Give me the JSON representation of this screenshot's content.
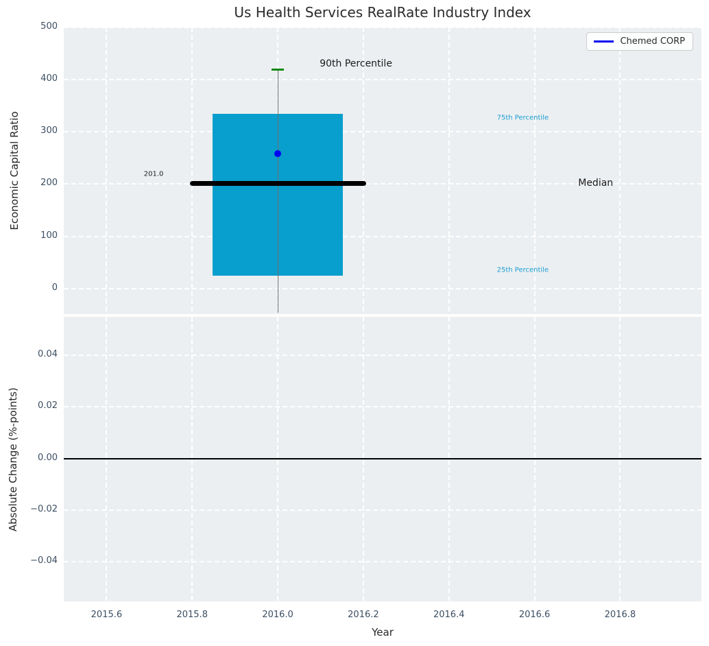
{
  "figure": {
    "background": "#ffffff",
    "axes_background": "#eceff1",
    "grid_color": "#ffffff",
    "tick_color": "#3b4d61"
  },
  "chart_data": [
    {
      "type": "box",
      "title": "Us Health Services RealRate Industry Index",
      "ylabel": "Economic Capital Ratio",
      "xlim": [
        2015.5,
        2016.99
      ],
      "ylim": [
        -49,
        500
      ],
      "grid": true,
      "yticks": [
        {
          "label": "0",
          "value": 0
        },
        {
          "label": "100",
          "value": 100
        },
        {
          "label": "200",
          "value": 200
        },
        {
          "label": "300",
          "value": 300
        },
        {
          "label": "400",
          "value": 400
        },
        {
          "label": "500",
          "value": 500
        }
      ],
      "legend": {
        "label": "Chemed CORP",
        "line_color": "#0000f0",
        "position": "upper right"
      },
      "series_x": 2016.0,
      "percentiles": {
        "p90": 419,
        "p75": 335,
        "median": 201,
        "p25": 25,
        "whisker_low": -47
      },
      "median_value_label": "201.0",
      "company_point": {
        "name": "Chemed CORP",
        "x": 2016.0,
        "y": 258
      },
      "annotations": [
        {
          "text": "90th Percentile",
          "x": 2016.098,
          "y": 430,
          "color": "#1a1a1a",
          "size": 14,
          "anchor": "start"
        },
        {
          "text": "75th Percentile",
          "x": 2016.512,
          "y": 326,
          "color": "#1b9ed3",
          "size": 10,
          "anchor": "start"
        },
        {
          "text": "Median",
          "x": 2016.702,
          "y": 202,
          "color": "#1a1a1a",
          "size": 14,
          "anchor": "start"
        },
        {
          "text": "25th Percentile",
          "x": 2016.512,
          "y": 35,
          "color": "#1b9ed3",
          "size": 10,
          "anchor": "start"
        },
        {
          "text": "201.0",
          "x": 2015.71,
          "y": 219,
          "color": "#1a1a1a",
          "size": 10,
          "anchor": "middle"
        }
      ],
      "colors": {
        "box": "#089ecd",
        "median_line": "#000000",
        "cap_90th": "#128a12",
        "whisker": "#6e6e6e",
        "point": "#0000f0"
      },
      "geometry": {
        "box_half_width": 0.152,
        "median_half_width": 0.206,
        "cap_half_width": 0.0144
      }
    },
    {
      "type": "line",
      "ylabel": "Absolute Change (%-points)",
      "xlabel": "Year",
      "xlim": [
        2015.5,
        2016.99
      ],
      "ylim": [
        -0.0553,
        0.0548
      ],
      "grid": true,
      "zero_line_y": 0.0,
      "zero_line_color": "#000000",
      "yticks": [
        {
          "label": "0.04",
          "value": 0.04
        },
        {
          "label": "0.02",
          "value": 0.02
        },
        {
          "label": "0.00",
          "value": 0.0
        },
        {
          "label": "−0.02",
          "value": -0.02
        },
        {
          "label": "−0.04",
          "value": -0.04
        }
      ],
      "xticks": [
        {
          "label": "2015.6",
          "value": 2015.6
        },
        {
          "label": "2015.8",
          "value": 2015.8
        },
        {
          "label": "2016.0",
          "value": 2016.0
        },
        {
          "label": "2016.2",
          "value": 2016.2
        },
        {
          "label": "2016.4",
          "value": 2016.4
        },
        {
          "label": "2016.6",
          "value": 2016.6
        },
        {
          "label": "2016.8",
          "value": 2016.8
        }
      ]
    }
  ]
}
